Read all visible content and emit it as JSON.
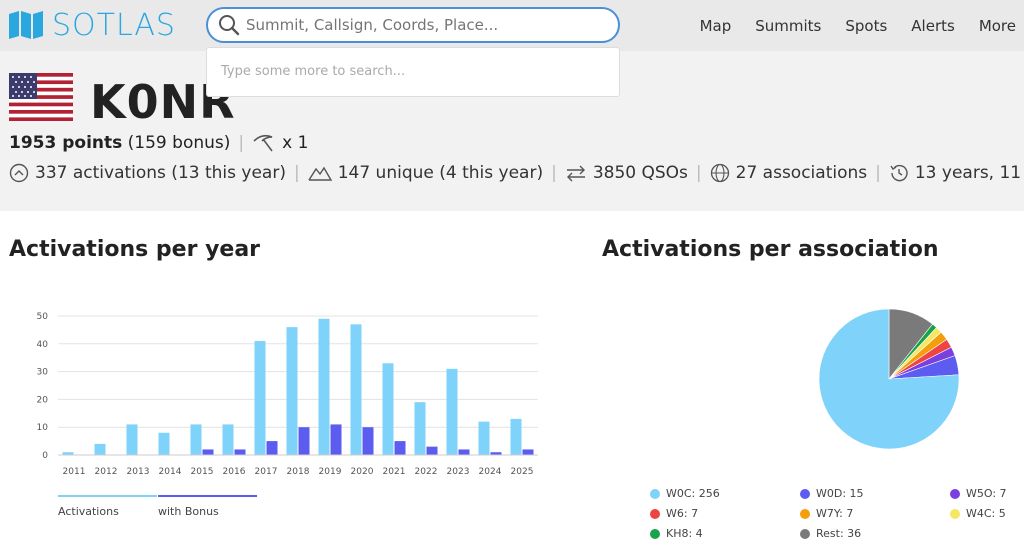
{
  "logo": {
    "text": "SOTLAS"
  },
  "search": {
    "placeholder": "Summit, Callsign, Coords, Place...",
    "dropdown_hint": "Type some more to search..."
  },
  "nav": {
    "items": [
      "Map",
      "Summits",
      "Spots",
      "Alerts",
      "More"
    ]
  },
  "profile": {
    "callsign": "K0NR",
    "points": "1953 points",
    "bonus": "(159 bonus)",
    "pick_count": "x 1",
    "activations": "337 activations (13 this year)",
    "unique": "147 unique (4 this year)",
    "qsos": "3850 QSOs",
    "associations": "27 associations",
    "years": "13 years, 11"
  },
  "sections": {
    "per_year_title": "Activations per year",
    "per_assoc_title": "Activations per association"
  },
  "chart_data": [
    {
      "type": "bar",
      "categories": [
        "2011",
        "2012",
        "2013",
        "2014",
        "2015",
        "2016",
        "2017",
        "2018",
        "2019",
        "2020",
        "2021",
        "2022",
        "2023",
        "2024",
        "2025"
      ],
      "series": [
        {
          "name": "Activations",
          "values": [
            1,
            4,
            11,
            8,
            11,
            11,
            41,
            46,
            49,
            47,
            33,
            19,
            31,
            12,
            13
          ],
          "color": "#7fd3fa"
        },
        {
          "name": "with Bonus",
          "values": [
            0,
            0,
            0,
            0,
            2,
            2,
            5,
            10,
            11,
            10,
            5,
            3,
            2,
            1,
            2
          ],
          "color": "#5d5cf0"
        }
      ],
      "ylim": [
        0,
        50
      ],
      "yticks": [
        0,
        10,
        20,
        30,
        40,
        50
      ],
      "grid": true,
      "legend_placement": "bottom-left"
    },
    {
      "type": "pie",
      "slices": [
        {
          "label": "W0C: 256",
          "value": 256,
          "color": "#7fd3fa"
        },
        {
          "label": "W0D: 15",
          "value": 15,
          "color": "#5d5cf0"
        },
        {
          "label": "W5O: 7",
          "value": 7,
          "color": "#7b3fe0"
        },
        {
          "label": "W6: 7",
          "value": 7,
          "color": "#ef4444"
        },
        {
          "label": "W7Y: 7",
          "value": 7,
          "color": "#f59e0b"
        },
        {
          "label": "W4C: 5",
          "value": 5,
          "color": "#f5e663"
        },
        {
          "label": "KH8: 4",
          "value": 4,
          "color": "#16a34a"
        },
        {
          "label": "Rest: 36",
          "value": 36,
          "color": "#7a7a7a"
        }
      ],
      "legend_placement": "bottom"
    }
  ]
}
